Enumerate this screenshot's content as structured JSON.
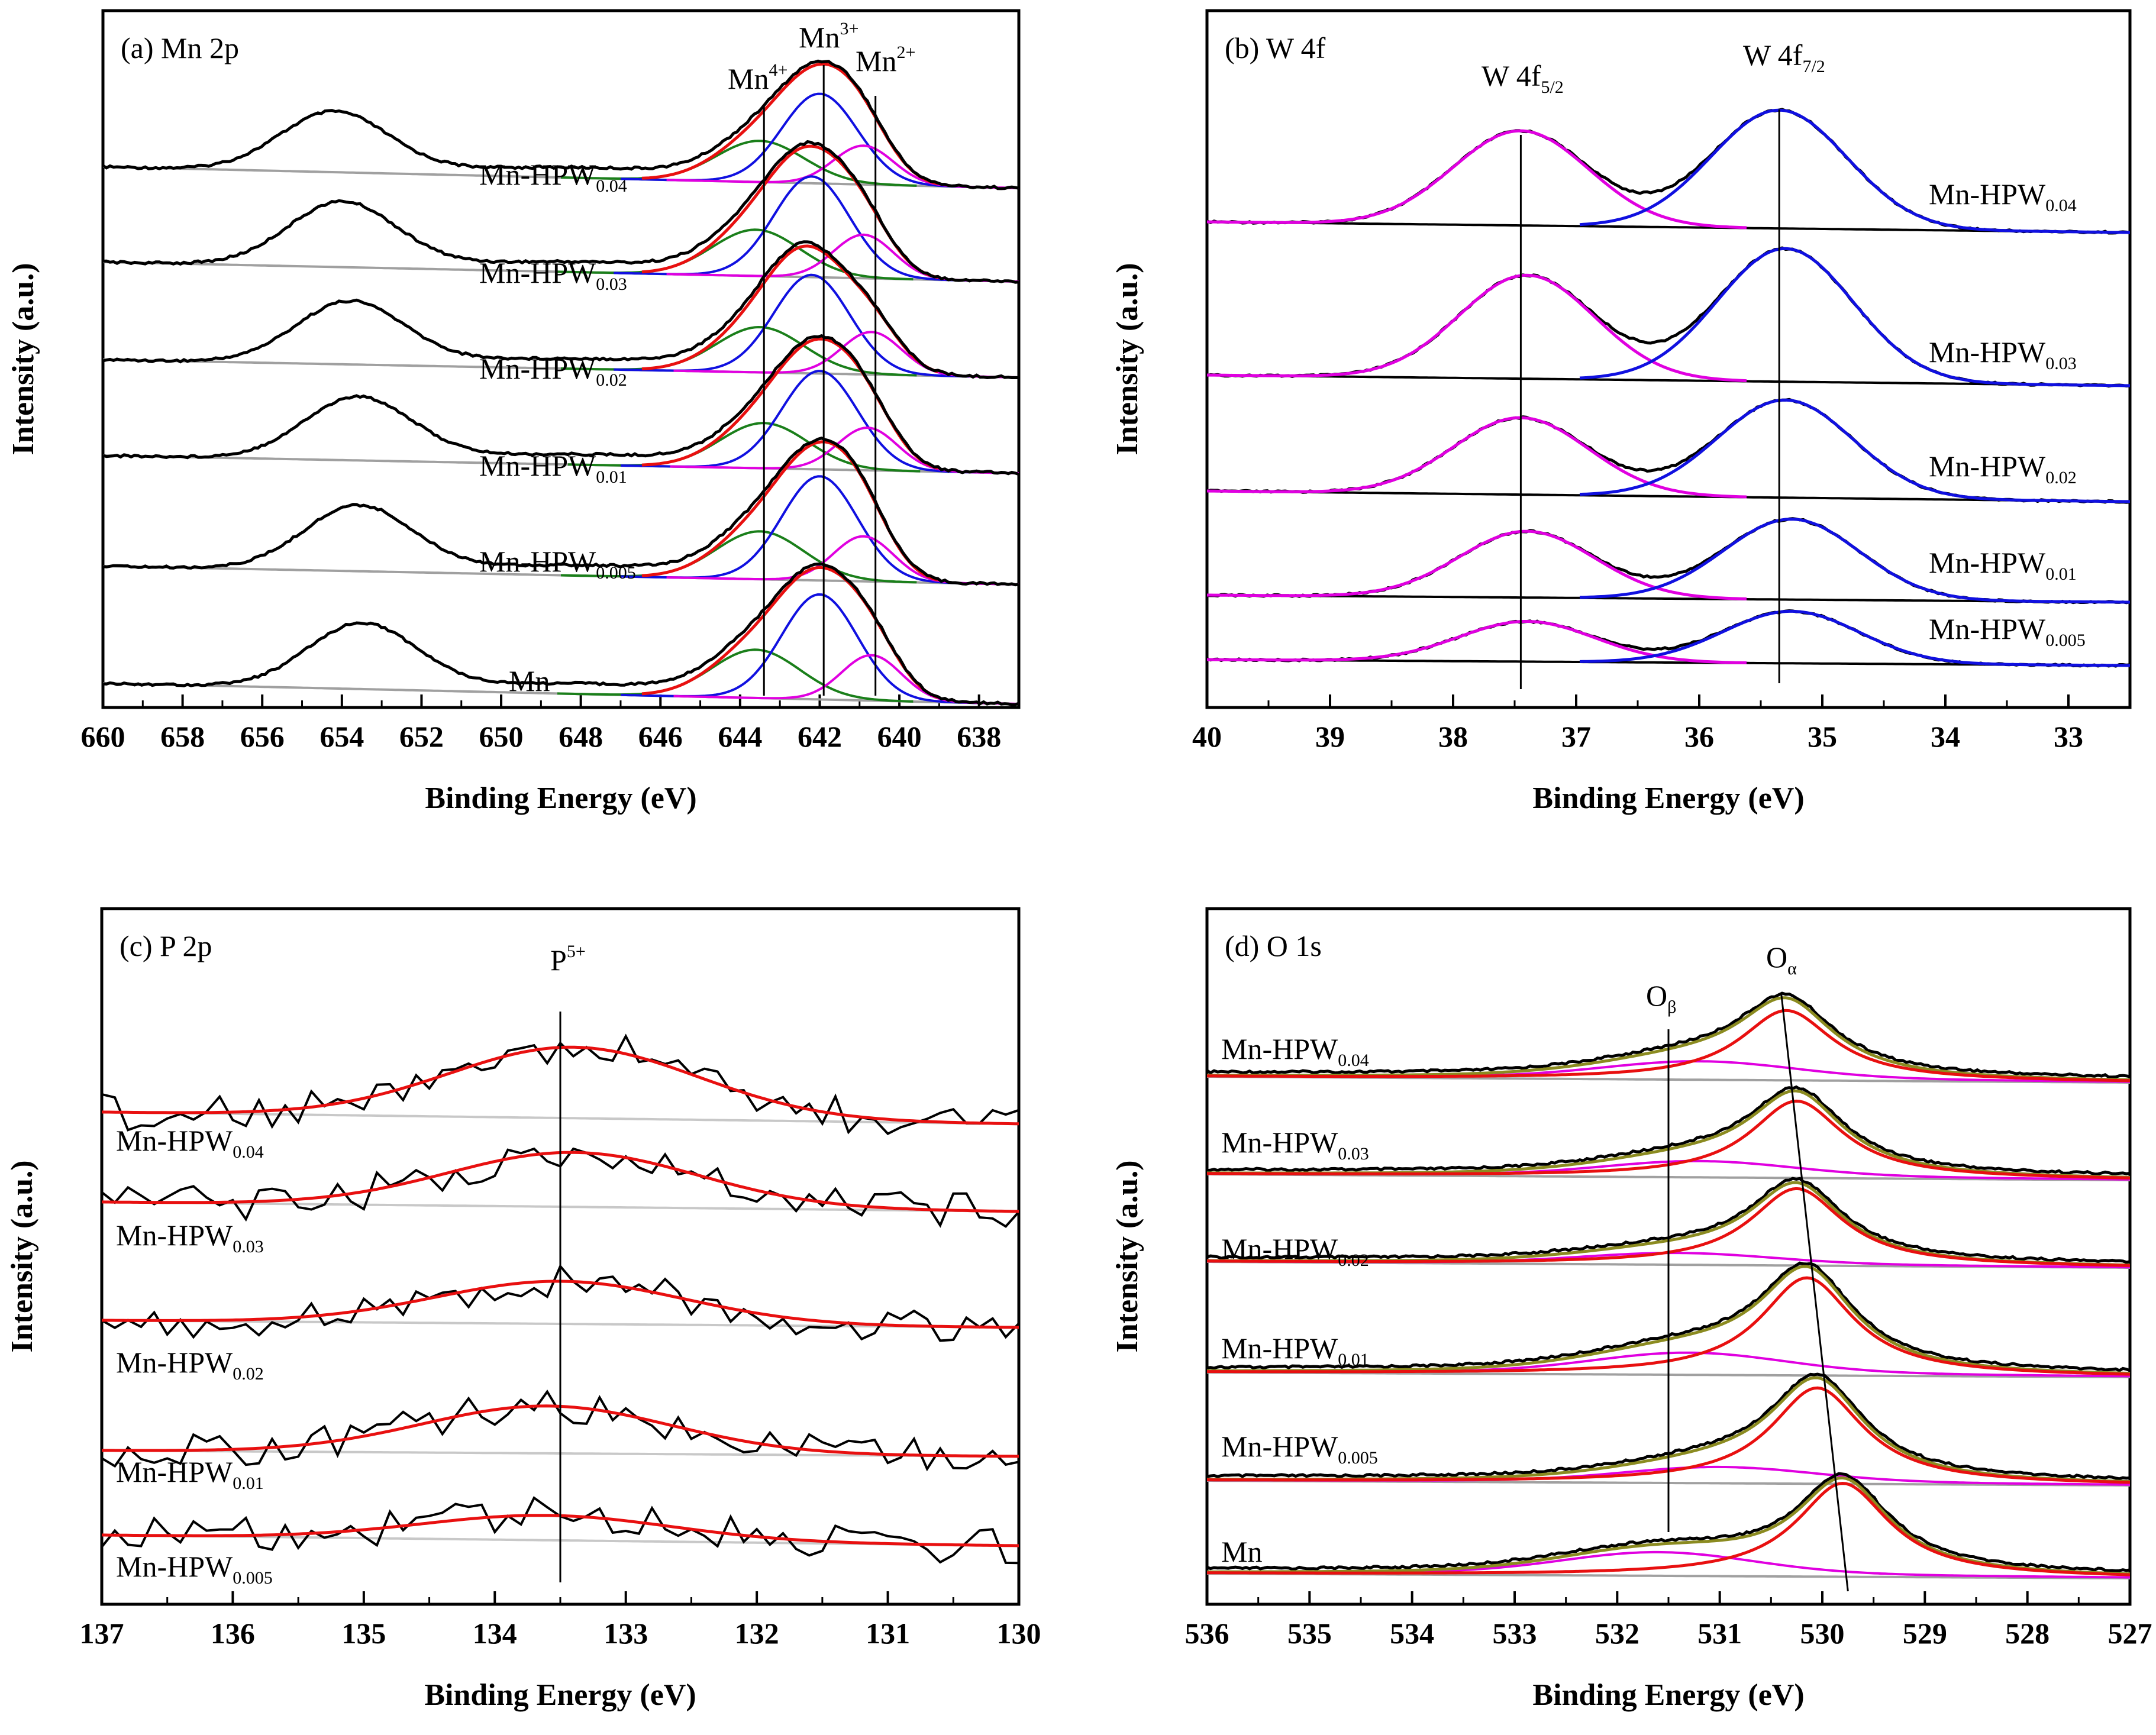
{
  "chart_data": [
    {
      "type": "line",
      "panel": "(a)",
      "title": "(a) Mn 2p",
      "xlabel": "Binding Energy (eV)",
      "ylabel": "Intensity (a.u.)",
      "xlim": [
        660,
        637
      ],
      "xticks": [
        660,
        658,
        656,
        654,
        652,
        650,
        648,
        646,
        644,
        642,
        640,
        638
      ],
      "xtick_labels": [
        "660",
        "658",
        "656",
        "654",
        "652",
        "650",
        "648",
        "646",
        "644",
        "642",
        "640",
        "638"
      ],
      "peak_lines": [
        {
          "label": "Mn",
          "sup": "4+",
          "x": 643.4
        },
        {
          "label": "Mn",
          "sup": "3+",
          "x": 641.9
        },
        {
          "label": "Mn",
          "sup": "2+",
          "x": 640.6
        }
      ],
      "series": [
        {
          "name": "Mn-HPW",
          "sub": "0.04",
          "base": 0.88,
          "peak": [
            654.2,
            641.8
          ],
          "fits": {
            "Mn4+": 643.5,
            "Mn3+": 642.0,
            "Mn2+": 640.9
          }
        },
        {
          "name": "Mn-HPW",
          "sub": "0.03",
          "base": 0.71,
          "peak": [
            654.0,
            641.8
          ],
          "fits": {
            "Mn4+": 643.6,
            "Mn3+": 642.2,
            "Mn2+": 640.9
          }
        },
        {
          "name": "Mn-HPW",
          "sub": "0.02",
          "base": 0.54,
          "peak": [
            653.8,
            641.9
          ],
          "fits": {
            "Mn4+": 643.5,
            "Mn3+": 642.2,
            "Mn2+": 640.7
          }
        },
        {
          "name": "Mn-HPW",
          "sub": "0.01",
          "base": 0.37,
          "peak": [
            653.6,
            641.9
          ],
          "fits": {
            "Mn4+": 643.4,
            "Mn3+": 642.0,
            "Mn2+": 640.8
          }
        },
        {
          "name": "Mn-HPW",
          "sub": "0.005",
          "base": 0.2,
          "peak": [
            653.6,
            641.9
          ],
          "fits": {
            "Mn4+": 643.5,
            "Mn3+": 642.0,
            "Mn2+": 640.9
          }
        },
        {
          "name": "Mn",
          "sub": "",
          "base": 0.03,
          "peak": [
            653.5,
            641.9
          ],
          "fits": {
            "Mn4+": 643.6,
            "Mn3+": 642.0,
            "Mn2+": 640.7
          }
        }
      ]
    },
    {
      "type": "line",
      "panel": "(b)",
      "title": "(b) W 4f",
      "xlabel": "Binding Energy (eV)",
      "ylabel": "Intensity (a.u.)",
      "xlim": [
        40,
        32.5
      ],
      "xticks": [
        40,
        39,
        38,
        37,
        36,
        35,
        34,
        33
      ],
      "xtick_labels": [
        "40",
        "39",
        "38",
        "37",
        "36",
        "35",
        "34",
        "33"
      ],
      "peak_lines": [
        {
          "label": "W 4f",
          "sub": "5/2",
          "x": 37.45
        },
        {
          "label": "W 4f",
          "sub": "7/2",
          "x": 35.35
        }
      ],
      "series": [
        {
          "name": "Mn-HPW",
          "sub": "0.04",
          "peaks": {
            "W 4f5/2": 37.45,
            "W 4f7/2": 35.35
          }
        },
        {
          "name": "Mn-HPW",
          "sub": "0.03",
          "peaks": {
            "W 4f5/2": 37.4,
            "W 4f7/2": 35.3
          }
        },
        {
          "name": "Mn-HPW",
          "sub": "0.02",
          "peaks": {
            "W 4f5/2": 37.45,
            "W 4f7/2": 35.3
          }
        },
        {
          "name": "Mn-HPW",
          "sub": "0.01",
          "peaks": {
            "W 4f5/2": 37.4,
            "W 4f7/2": 35.25
          }
        },
        {
          "name": "Mn-HPW",
          "sub": "0.005",
          "peaks": {
            "W 4f5/2": 37.4,
            "W 4f7/2": 35.25
          }
        }
      ]
    },
    {
      "type": "line",
      "panel": "(c)",
      "title": "(c) P 2p",
      "xlabel": "Binding Energy (eV)",
      "ylabel": "Intensity (a.u.)",
      "xlim": [
        137,
        130
      ],
      "xticks": [
        137,
        136,
        135,
        134,
        133,
        132,
        131,
        130
      ],
      "xtick_labels": [
        "137",
        "136",
        "135",
        "134",
        "133",
        "132",
        "131",
        "130"
      ],
      "peak_lines": [
        {
          "label": "P",
          "sup": "5+",
          "x": 133.5
        }
      ],
      "series": [
        {
          "name": "Mn-HPW",
          "sub": "0.04",
          "peak": 133.4
        },
        {
          "name": "Mn-HPW",
          "sub": "0.03",
          "peak": 133.4
        },
        {
          "name": "Mn-HPW",
          "sub": "0.02",
          "peak": 133.5
        },
        {
          "name": "Mn-HPW",
          "sub": "0.01",
          "peak": 133.6
        },
        {
          "name": "Mn-HPW",
          "sub": "0.005",
          "peak": 133.6
        }
      ]
    },
    {
      "type": "line",
      "panel": "(d)",
      "title": "(d) O 1s",
      "xlabel": "Binding Energy (eV)",
      "ylabel": "Intensity (a.u.)",
      "xlim": [
        536,
        527
      ],
      "xticks": [
        536,
        535,
        534,
        533,
        532,
        531,
        530,
        529,
        528,
        527
      ],
      "xtick_labels": [
        "536",
        "535",
        "534",
        "533",
        "532",
        "531",
        "530",
        "529",
        "528",
        "527"
      ],
      "peak_lines": [
        {
          "label": "O",
          "sub": "β",
          "x": 531.5
        },
        {
          "label": "O",
          "sub": "α",
          "x": 530.4
        }
      ],
      "series": [
        {
          "name": "Mn-HPW",
          "sub": "0.04",
          "O_alpha": 530.35,
          "O_beta": 531.2
        },
        {
          "name": "Mn-HPW",
          "sub": "0.03",
          "O_alpha": 530.25,
          "O_beta": 531.2
        },
        {
          "name": "Mn-HPW",
          "sub": "0.02",
          "O_alpha": 530.25,
          "O_beta": 531.4
        },
        {
          "name": "Mn-HPW",
          "sub": "0.01",
          "O_alpha": 530.15,
          "O_beta": 531.3
        },
        {
          "name": "Mn-HPW",
          "sub": "0.005",
          "O_alpha": 530.05,
          "O_beta": 531.0
        },
        {
          "name": "Mn",
          "sub": "",
          "O_alpha": 529.8,
          "O_beta": 531.6
        }
      ]
    }
  ]
}
